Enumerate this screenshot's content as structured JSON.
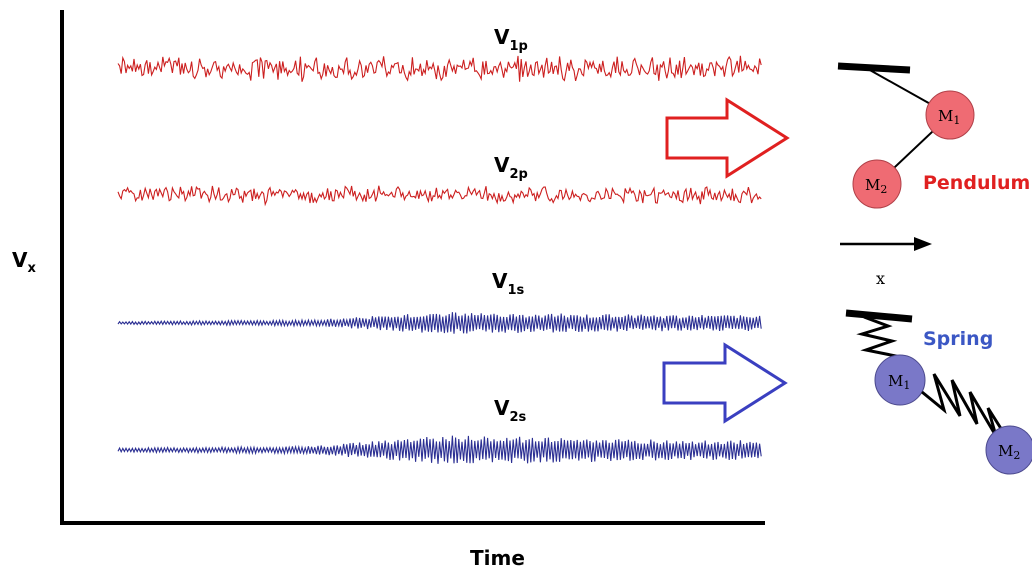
{
  "axes": {
    "y_label": {
      "main": "V",
      "sub": "x"
    },
    "x_label": "Time"
  },
  "signals": [
    {
      "id": "v1p",
      "label_main": "V",
      "label_sub": "1p",
      "color": "#cc1f1f"
    },
    {
      "id": "v2p",
      "label_main": "V",
      "label_sub": "2p",
      "color": "#cc1f1f"
    },
    {
      "id": "v1s",
      "label_main": "V",
      "label_sub": "1s",
      "color": "#2b2f93"
    },
    {
      "id": "v2s",
      "label_main": "V",
      "label_sub": "2s",
      "color": "#2b2f93"
    }
  ],
  "pendulum": {
    "label": "Pendulum",
    "label_color": "#e02020",
    "mass_color": "#ef6b73",
    "m1": {
      "main": "M",
      "sub": "1"
    },
    "m2": {
      "main": "M",
      "sub": "2"
    }
  },
  "spring": {
    "label": "Spring",
    "label_color": "#3b57c4",
    "mass_color": "#7a78c8",
    "m1": {
      "main": "M",
      "sub": "1"
    },
    "m2": {
      "main": "M",
      "sub": "2"
    }
  },
  "direction": {
    "label": "x"
  },
  "arrows": {
    "top_color": "#e02020",
    "bottom_color": "#3a3fc0"
  }
}
